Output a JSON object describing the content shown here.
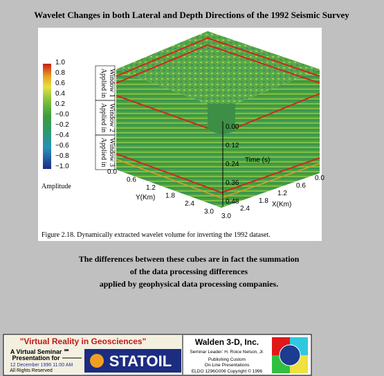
{
  "header": {
    "title": "Wavelet Changes in both Lateral and Depth Directions of the 1992 Seismic Survey"
  },
  "figure": {
    "colorbar": {
      "labels": [
        "1.0",
        "0.8",
        "0.6",
        "0.4",
        "0.2",
        "−0.0",
        "−0.2",
        "−0.4",
        "−0.6",
        "−0.8",
        "−1.0"
      ],
      "title": "Amplitude"
    },
    "windows": [
      {
        "line1": "Applied in",
        "line2": "Window 1"
      },
      {
        "line1": "Applied in",
        "line2": "Window 2"
      },
      {
        "line1": "Applied in",
        "line2": "Window 3"
      }
    ],
    "time_axis": {
      "labels": [
        "0.00",
        "0.12",
        "0.24",
        "0.36",
        "0.48"
      ],
      "title": "Time (s)"
    },
    "y_axis": {
      "labels": [
        "0.0",
        "0.6",
        "1.2",
        "1.8",
        "2.4",
        "3.0"
      ],
      "title": "Y(Km)"
    },
    "x_axis": {
      "labels": [
        "0.0",
        "0.6",
        "1.2",
        "1.8",
        "2.4",
        "3.0"
      ],
      "title": "X(Km)"
    },
    "caption": "Figure  2.18.  Dynamically extracted wavelet volume for inverting the 1992 dataset."
  },
  "body": {
    "lines": [
      "The differences between these cubes are in fact the summation",
      "of the data processing differences",
      "applied by geophysical data processing companies."
    ]
  },
  "footer": {
    "banner_title": "\"Virtual Reality in Geosciences\"",
    "seminar": "A Virtual Seminar ℠",
    "presentation_for": "Presentation for",
    "date": "12 December 1996  11:00 AM",
    "rights": "All Rights Reserved",
    "client": "STATOIL",
    "company": "Walden 3-D, Inc.",
    "leader": "Seminar Leader: H. Roice Nelson, Jr.",
    "publishing1": "Publishing Custom",
    "publishing2": "On-Line Presentations",
    "copyright": "ELDO 1296G006 Copyright © 1996"
  }
}
